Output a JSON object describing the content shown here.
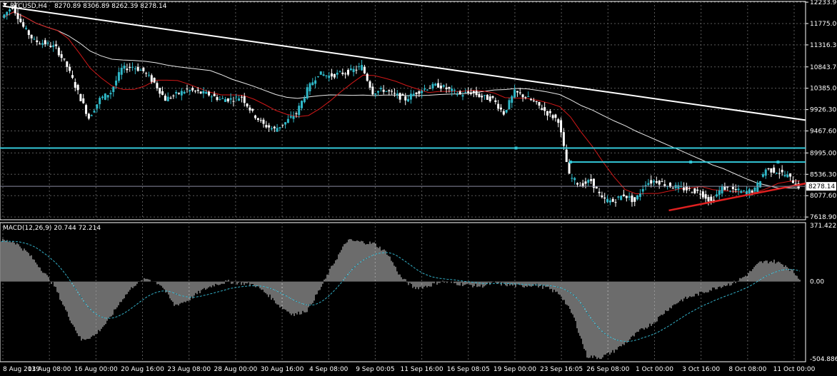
{
  "header": {
    "symbol_label": "BTCUSD,H4",
    "ohlc_label": "8270.89 8306.89 8262.39 8278.14"
  },
  "indicator": {
    "label": "MACD(12,26,9) 20.744 72.214"
  },
  "colors": {
    "background": "#000000",
    "grid": "#5a5a5a",
    "bull_candle": "#2fb8c8",
    "bear_candle": "#ffffff",
    "ma_fast": "#d01818",
    "ma_slow": "#e8e8e8",
    "trendline": "#ffffff",
    "support_line": "#e02020",
    "level_line": "#33c8d8",
    "macd_hist": "#d8d8d8",
    "macd_signal": "#33b0c8"
  },
  "chart_data": [
    {
      "type": "candlestick",
      "symbol": "BTCUSD",
      "timeframe": "H4",
      "last_price": 8278.14,
      "price_axis_labels": [
        "12233.90",
        "11775.00",
        "11316.30",
        "10843.70",
        "10385.00",
        "9926.30",
        "9467.60",
        "8995.00",
        "8536.30",
        "8077.60",
        "7618.90"
      ],
      "price_axis_values": [
        12233.9,
        11775.0,
        11316.3,
        10843.7,
        10385.0,
        9926.3,
        9467.6,
        8995.0,
        8536.3,
        8077.6,
        7618.9
      ],
      "ylim": [
        7560,
        12250
      ],
      "time_axis_labels": [
        "8 Aug 2019",
        "13 Aug 08:00",
        "16 Aug 00:00",
        "20 Aug 16:00",
        "23 Aug 08:00",
        "28 Aug 00:00",
        "30 Aug 16:00",
        "4 Sep 08:00",
        "9 Sep 00:05",
        "11 Sep 16:00",
        "16 Sep 08:05",
        "19 Sep 00:00",
        "23 Sep 16:05",
        "26 Sep 08:00",
        "1 Oct 00:00",
        "3 Oct 16:00",
        "8 Oct 08:00",
        "11 Oct 00:00"
      ],
      "price_path": [
        [
          0,
          11900
        ],
        [
          1,
          12150
        ],
        [
          2,
          11700
        ],
        [
          3,
          11400
        ],
        [
          4,
          11350
        ],
        [
          5,
          11250
        ],
        [
          6,
          10850
        ],
        [
          7,
          10300
        ],
        [
          8,
          9750
        ],
        [
          9,
          10150
        ],
        [
          10,
          10300
        ],
        [
          11,
          10800
        ],
        [
          12,
          10850
        ],
        [
          13,
          10750
        ],
        [
          14,
          10500
        ],
        [
          15,
          10150
        ],
        [
          16,
          10250
        ],
        [
          17,
          10350
        ],
        [
          18,
          10300
        ],
        [
          19,
          10250
        ],
        [
          20,
          10150
        ],
        [
          21,
          10150
        ],
        [
          22,
          10200
        ],
        [
          23,
          9850
        ],
        [
          24,
          9600
        ],
        [
          25,
          9500
        ],
        [
          26,
          9650
        ],
        [
          27,
          9850
        ],
        [
          28,
          10350
        ],
        [
          29,
          10700
        ],
        [
          30,
          10650
        ],
        [
          31,
          10700
        ],
        [
          32,
          10750
        ],
        [
          33,
          10850
        ],
        [
          34,
          10300
        ],
        [
          35,
          10350
        ],
        [
          36,
          10250
        ],
        [
          37,
          10150
        ],
        [
          38,
          10300
        ],
        [
          39,
          10400
        ],
        [
          40,
          10450
        ],
        [
          41,
          10350
        ],
        [
          42,
          10250
        ],
        [
          43,
          10300
        ],
        [
          44,
          10200
        ],
        [
          45,
          10150
        ],
        [
          46,
          9850
        ],
        [
          47,
          10300
        ],
        [
          48,
          10200
        ],
        [
          49,
          10050
        ],
        [
          50,
          9850
        ],
        [
          51,
          9700
        ],
        [
          52,
          8500
        ],
        [
          53,
          8300
        ],
        [
          54,
          8400
        ],
        [
          55,
          8000
        ],
        [
          56,
          7950
        ],
        [
          57,
          8100
        ],
        [
          58,
          7950
        ],
        [
          59,
          8350
        ],
        [
          60,
          8400
        ],
        [
          61,
          8300
        ],
        [
          62,
          8250
        ],
        [
          63,
          8200
        ],
        [
          64,
          8150
        ],
        [
          65,
          7950
        ],
        [
          66,
          8250
        ],
        [
          67,
          8200
        ],
        [
          68,
          8150
        ],
        [
          69,
          8200
        ],
        [
          70,
          8650
        ],
        [
          71,
          8600
        ],
        [
          72,
          8500
        ],
        [
          73,
          8278.14
        ]
      ],
      "overlays": {
        "trendline_resistance": {
          "start": [
            0,
            12150
          ],
          "end": [
            73,
            9700
          ]
        },
        "support_trendline": {
          "start": [
            61,
            7760
          ],
          "end": [
            73,
            8340
          ]
        },
        "horizontal_level_1": 9100,
        "horizontal_level_2_start": 52,
        "horizontal_level_2": 8800,
        "current_price_line": 8278.14
      }
    },
    {
      "type": "histogram",
      "name": "MACD(12,26,9)",
      "main_value": 20.744,
      "signal_value": 72.214,
      "axis_labels": [
        "371.422",
        "0.00",
        "-504.886"
      ],
      "ylim": [
        -504.886,
        371.422
      ],
      "macd_path": [
        [
          0,
          260
        ],
        [
          1,
          250
        ],
        [
          2,
          180
        ],
        [
          3,
          80
        ],
        [
          4,
          -30
        ],
        [
          5,
          -210
        ],
        [
          6,
          -370
        ],
        [
          7,
          -340
        ],
        [
          8,
          -250
        ],
        [
          9,
          -120
        ],
        [
          10,
          -20
        ],
        [
          11,
          20
        ],
        [
          12,
          -20
        ],
        [
          13,
          -150
        ],
        [
          14,
          -120
        ],
        [
          15,
          -60
        ],
        [
          16,
          -20
        ],
        [
          17,
          0
        ],
        [
          18,
          -10
        ],
        [
          19,
          -20
        ],
        [
          20,
          -80
        ],
        [
          21,
          -160
        ],
        [
          22,
          -210
        ],
        [
          23,
          -180
        ],
        [
          24,
          -40
        ],
        [
          25,
          120
        ],
        [
          26,
          260
        ],
        [
          27,
          250
        ],
        [
          28,
          240
        ],
        [
          29,
          180
        ],
        [
          30,
          30
        ],
        [
          31,
          -40
        ],
        [
          32,
          -30
        ],
        [
          33,
          0
        ],
        [
          34,
          -10
        ],
        [
          35,
          -20
        ],
        [
          36,
          -30
        ],
        [
          37,
          -10
        ],
        [
          38,
          -20
        ],
        [
          39,
          -30
        ],
        [
          40,
          -20
        ],
        [
          41,
          -40
        ],
        [
          42,
          -80
        ],
        [
          43,
          -220
        ],
        [
          44,
          -470
        ],
        [
          45,
          -480
        ],
        [
          46,
          -440
        ],
        [
          47,
          -380
        ],
        [
          48,
          -310
        ],
        [
          49,
          -260
        ],
        [
          50,
          -180
        ],
        [
          51,
          -120
        ],
        [
          52,
          -90
        ],
        [
          53,
          -60
        ],
        [
          54,
          -30
        ],
        [
          55,
          -10
        ],
        [
          56,
          40
        ],
        [
          57,
          120
        ],
        [
          58,
          130
        ],
        [
          59,
          100
        ],
        [
          60,
          20
        ]
      ]
    }
  ]
}
